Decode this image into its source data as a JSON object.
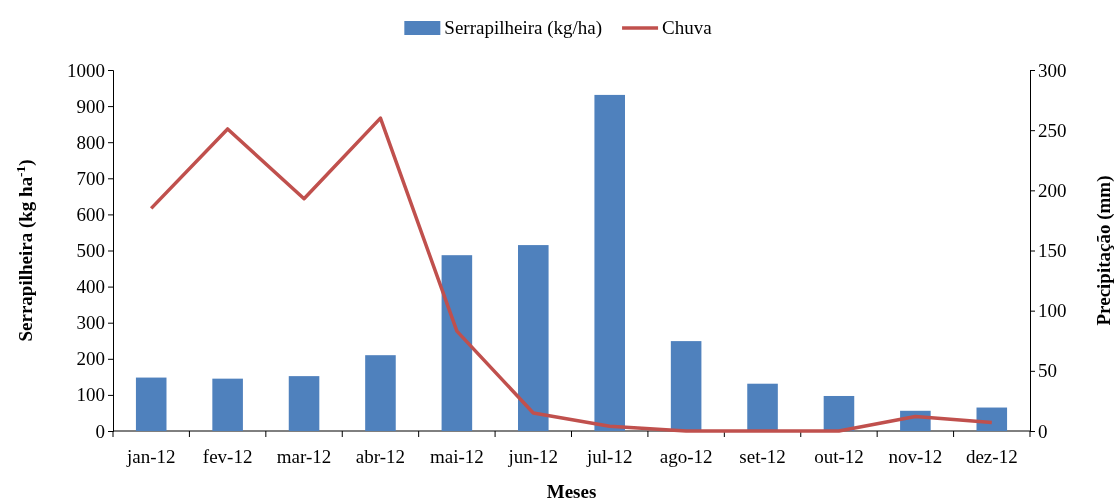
{
  "chart_data": {
    "type": "bar",
    "categories": [
      "jan-12",
      "fev-12",
      "mar-12",
      "abr-12",
      "mai-12",
      "jun-12",
      "jul-12",
      "ago-12",
      "set-12",
      "out-12",
      "nov-12",
      "dez-12"
    ],
    "series": [
      {
        "name": "Serrapilheira (kg/ha)",
        "color": "#4f81bd",
        "values": [
          148,
          145,
          152,
          210,
          487,
          515,
          931,
          249,
          131,
          97,
          56,
          65
        ]
      },
      {
        "name": "Chuva",
        "type": "line",
        "axis": "y2",
        "color": "#c0504d",
        "values": [
          185,
          251,
          193,
          260,
          83,
          15,
          4,
          0,
          0,
          0,
          12,
          7
        ]
      }
    ],
    "xlabel": "Meses",
    "ylabel": "Serrapilheira  (kg ha$^{-1}$)",
    "y2label": "Precipitação (mm)",
    "ylim": [
      0,
      1000
    ],
    "yticks": [
      0,
      100,
      200,
      300,
      400,
      500,
      600,
      700,
      800,
      900,
      1000
    ],
    "y2lim": [
      0,
      300
    ],
    "y2ticks": [
      0,
      50,
      100,
      150,
      200,
      250,
      300
    ],
    "legend": "top",
    "grid": false,
    "marker": "none",
    "line_style": "solid"
  }
}
